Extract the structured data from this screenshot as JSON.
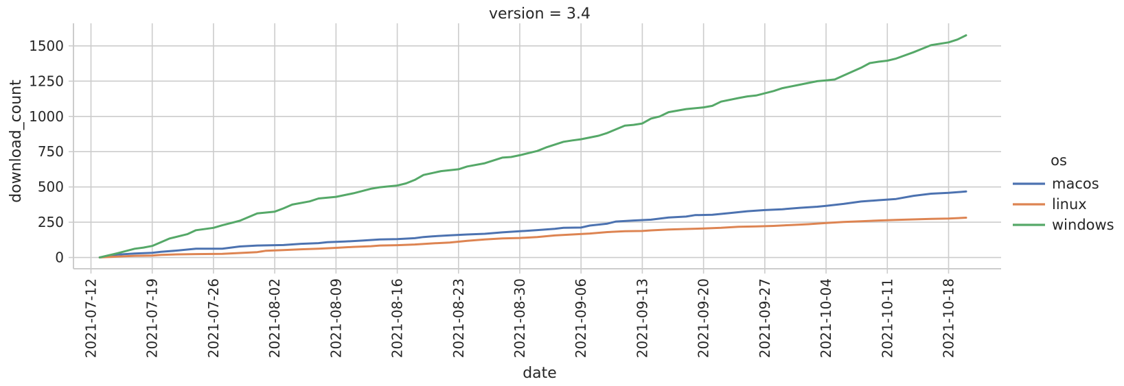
{
  "chart_data": {
    "type": "line",
    "title": "version = 3.4",
    "xlabel": "date",
    "ylabel": "download_count",
    "x_ticks": [
      "2021-07-12",
      "2021-07-19",
      "2021-07-26",
      "2021-08-02",
      "2021-08-09",
      "2021-08-16",
      "2021-08-23",
      "2021-08-30",
      "2021-09-06",
      "2021-09-13",
      "2021-09-20",
      "2021-09-27",
      "2021-10-04",
      "2021-10-11",
      "2021-10-18"
    ],
    "y_ticks": [
      0,
      250,
      500,
      750,
      1000,
      1250,
      1500
    ],
    "xlim": [
      "2021-07-10",
      "2021-10-24"
    ],
    "ylim": [
      -80,
      1660
    ],
    "grid": true,
    "legend": {
      "title": "os",
      "placement": "right"
    },
    "series": [
      {
        "name": "macos",
        "color": "#4c72b0",
        "points": [
          [
            "2021-07-13",
            0
          ],
          [
            "2021-07-15",
            20
          ],
          [
            "2021-07-17",
            28
          ],
          [
            "2021-07-19",
            33
          ],
          [
            "2021-07-20",
            40
          ],
          [
            "2021-07-22",
            50
          ],
          [
            "2021-07-24",
            62
          ],
          [
            "2021-07-27",
            62
          ],
          [
            "2021-07-29",
            78
          ],
          [
            "2021-07-31",
            85
          ],
          [
            "2021-08-03",
            88
          ],
          [
            "2021-08-05",
            97
          ],
          [
            "2021-08-07",
            102
          ],
          [
            "2021-08-08",
            108
          ],
          [
            "2021-08-10",
            113
          ],
          [
            "2021-08-12",
            120
          ],
          [
            "2021-08-14",
            128
          ],
          [
            "2021-08-16",
            130
          ],
          [
            "2021-08-18",
            137
          ],
          [
            "2021-08-19",
            145
          ],
          [
            "2021-08-20",
            150
          ],
          [
            "2021-08-22",
            157
          ],
          [
            "2021-08-24",
            163
          ],
          [
            "2021-08-26",
            168
          ],
          [
            "2021-08-28",
            178
          ],
          [
            "2021-08-30",
            186
          ],
          [
            "2021-09-01",
            194
          ],
          [
            "2021-09-03",
            203
          ],
          [
            "2021-09-04",
            210
          ],
          [
            "2021-09-06",
            212
          ],
          [
            "2021-09-07",
            226
          ],
          [
            "2021-09-09",
            240
          ],
          [
            "2021-09-10",
            255
          ],
          [
            "2021-09-12",
            262
          ],
          [
            "2021-09-14",
            268
          ],
          [
            "2021-09-16",
            283
          ],
          [
            "2021-09-18",
            290
          ],
          [
            "2021-09-19",
            300
          ],
          [
            "2021-09-21",
            303
          ],
          [
            "2021-09-23",
            315
          ],
          [
            "2021-09-25",
            328
          ],
          [
            "2021-09-27",
            336
          ],
          [
            "2021-09-29",
            342
          ],
          [
            "2021-10-01",
            352
          ],
          [
            "2021-10-03",
            360
          ],
          [
            "2021-10-04",
            366
          ],
          [
            "2021-10-06",
            380
          ],
          [
            "2021-10-08",
            397
          ],
          [
            "2021-10-10",
            406
          ],
          [
            "2021-10-12",
            415
          ],
          [
            "2021-10-14",
            437
          ],
          [
            "2021-10-16",
            452
          ],
          [
            "2021-10-18",
            458
          ],
          [
            "2021-10-20",
            468
          ]
        ]
      },
      {
        "name": "linux",
        "color": "#dd8452",
        "points": [
          [
            "2021-07-13",
            0
          ],
          [
            "2021-07-15",
            6
          ],
          [
            "2021-07-17",
            12
          ],
          [
            "2021-07-19",
            14
          ],
          [
            "2021-07-20",
            18
          ],
          [
            "2021-07-22",
            22
          ],
          [
            "2021-07-24",
            24
          ],
          [
            "2021-07-27",
            26
          ],
          [
            "2021-07-29",
            32
          ],
          [
            "2021-07-31",
            38
          ],
          [
            "2021-08-01",
            48
          ],
          [
            "2021-08-03",
            52
          ],
          [
            "2021-08-05",
            58
          ],
          [
            "2021-08-07",
            62
          ],
          [
            "2021-08-09",
            68
          ],
          [
            "2021-08-11",
            75
          ],
          [
            "2021-08-13",
            80
          ],
          [
            "2021-08-14",
            85
          ],
          [
            "2021-08-16",
            87
          ],
          [
            "2021-08-18",
            92
          ],
          [
            "2021-08-20",
            100
          ],
          [
            "2021-08-22",
            106
          ],
          [
            "2021-08-24",
            118
          ],
          [
            "2021-08-26",
            128
          ],
          [
            "2021-08-28",
            135
          ],
          [
            "2021-08-30",
            138
          ],
          [
            "2021-09-01",
            145
          ],
          [
            "2021-09-03",
            156
          ],
          [
            "2021-09-05",
            163
          ],
          [
            "2021-09-07",
            170
          ],
          [
            "2021-09-09",
            180
          ],
          [
            "2021-09-11",
            186
          ],
          [
            "2021-09-13",
            188
          ],
          [
            "2021-09-14",
            192
          ],
          [
            "2021-09-16",
            198
          ],
          [
            "2021-09-18",
            202
          ],
          [
            "2021-09-20",
            206
          ],
          [
            "2021-09-22",
            210
          ],
          [
            "2021-09-24",
            218
          ],
          [
            "2021-09-26",
            220
          ],
          [
            "2021-09-28",
            224
          ],
          [
            "2021-09-30",
            230
          ],
          [
            "2021-10-02",
            236
          ],
          [
            "2021-10-04",
            244
          ],
          [
            "2021-10-06",
            252
          ],
          [
            "2021-10-08",
            257
          ],
          [
            "2021-10-10",
            262
          ],
          [
            "2021-10-12",
            266
          ],
          [
            "2021-10-14",
            270
          ],
          [
            "2021-10-16",
            274
          ],
          [
            "2021-10-18",
            276
          ],
          [
            "2021-10-20",
            282
          ]
        ]
      },
      {
        "name": "windows",
        "color": "#55a868",
        "points": [
          [
            "2021-07-13",
            0
          ],
          [
            "2021-07-15",
            30
          ],
          [
            "2021-07-17",
            62
          ],
          [
            "2021-07-18",
            70
          ],
          [
            "2021-07-19",
            82
          ],
          [
            "2021-07-20",
            108
          ],
          [
            "2021-07-21",
            135
          ],
          [
            "2021-07-23",
            165
          ],
          [
            "2021-07-24",
            193
          ],
          [
            "2021-07-26",
            210
          ],
          [
            "2021-07-27",
            228
          ],
          [
            "2021-07-29",
            260
          ],
          [
            "2021-07-31",
            312
          ],
          [
            "2021-08-02",
            325
          ],
          [
            "2021-08-03",
            348
          ],
          [
            "2021-08-04",
            375
          ],
          [
            "2021-08-06",
            398
          ],
          [
            "2021-08-07",
            418
          ],
          [
            "2021-08-09",
            430
          ],
          [
            "2021-08-11",
            455
          ],
          [
            "2021-08-13",
            487
          ],
          [
            "2021-08-14",
            498
          ],
          [
            "2021-08-16",
            510
          ],
          [
            "2021-08-17",
            525
          ],
          [
            "2021-08-18",
            550
          ],
          [
            "2021-08-19",
            585
          ],
          [
            "2021-08-21",
            612
          ],
          [
            "2021-08-23",
            625
          ],
          [
            "2021-08-24",
            645
          ],
          [
            "2021-08-26",
            668
          ],
          [
            "2021-08-28",
            708
          ],
          [
            "2021-08-29",
            712
          ],
          [
            "2021-08-30",
            725
          ],
          [
            "2021-09-01",
            755
          ],
          [
            "2021-09-02",
            780
          ],
          [
            "2021-09-04",
            820
          ],
          [
            "2021-09-05",
            830
          ],
          [
            "2021-09-06",
            838
          ],
          [
            "2021-09-08",
            863
          ],
          [
            "2021-09-09",
            883
          ],
          [
            "2021-09-11",
            935
          ],
          [
            "2021-09-12",
            940
          ],
          [
            "2021-09-13",
            950
          ],
          [
            "2021-09-14",
            985
          ],
          [
            "2021-09-15",
            1000
          ],
          [
            "2021-09-16",
            1030
          ],
          [
            "2021-09-18",
            1052
          ],
          [
            "2021-09-20",
            1064
          ],
          [
            "2021-09-21",
            1075
          ],
          [
            "2021-09-22",
            1105
          ],
          [
            "2021-09-24",
            1130
          ],
          [
            "2021-09-25",
            1142
          ],
          [
            "2021-09-26",
            1148
          ],
          [
            "2021-09-28",
            1180
          ],
          [
            "2021-09-29",
            1200
          ],
          [
            "2021-10-01",
            1225
          ],
          [
            "2021-10-03",
            1250
          ],
          [
            "2021-10-04",
            1255
          ],
          [
            "2021-10-05",
            1262
          ],
          [
            "2021-10-06",
            1290
          ],
          [
            "2021-10-08",
            1345
          ],
          [
            "2021-10-09",
            1378
          ],
          [
            "2021-10-10",
            1388
          ],
          [
            "2021-10-11",
            1395
          ],
          [
            "2021-10-12",
            1410
          ],
          [
            "2021-10-14",
            1455
          ],
          [
            "2021-10-15",
            1480
          ],
          [
            "2021-10-16",
            1505
          ],
          [
            "2021-10-18",
            1525
          ],
          [
            "2021-10-19",
            1545
          ],
          [
            "2021-10-20",
            1575
          ]
        ]
      }
    ]
  }
}
